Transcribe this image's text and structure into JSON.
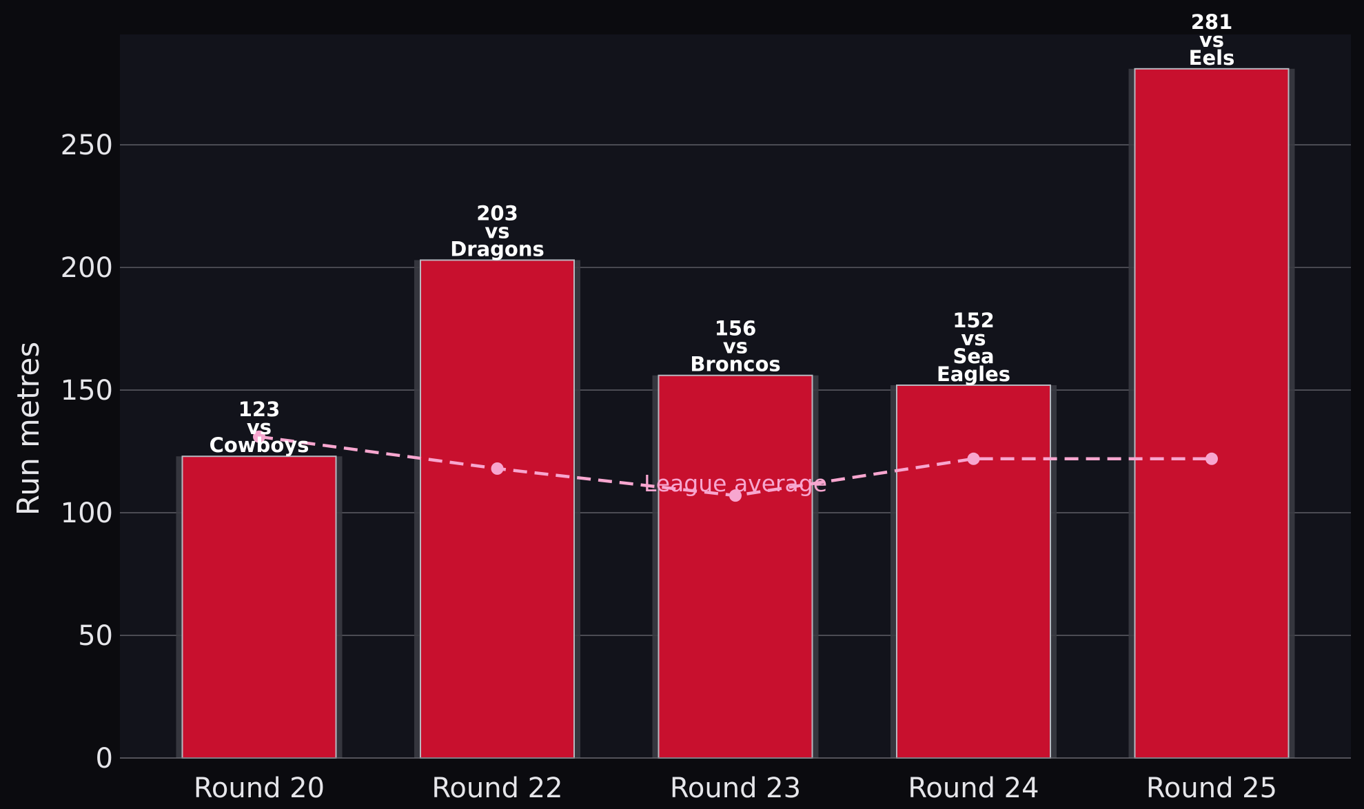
{
  "chart_data": {
    "type": "bar",
    "categories": [
      "Round 20",
      "Round 22",
      "Round 23",
      "Round 24",
      "Round 25"
    ],
    "values": [
      123,
      203,
      156,
      152,
      281
    ],
    "bar_labels": [
      [
        "123",
        "vs",
        "Cowboys"
      ],
      [
        "203",
        "vs",
        "Dragons"
      ],
      [
        "156",
        "vs",
        "Broncos"
      ],
      [
        "152",
        "vs",
        "Sea",
        "Eagles"
      ],
      [
        "281",
        "vs",
        "Eels"
      ]
    ],
    "line_series": {
      "name": "",
      "values": [
        131,
        118,
        107,
        122,
        122
      ],
      "annotation": "League average"
    },
    "ylabel": "Run metres",
    "xlabel": "",
    "title": "",
    "ylim": [
      0,
      295
    ],
    "yticks": [
      0,
      50,
      100,
      150,
      200,
      250
    ],
    "grid": "horizontal",
    "colors": {
      "background": "#0b0b0f",
      "plot_background": "#12131b",
      "bar": "#c8102e",
      "bar_edge": "#b8b8c0",
      "line": "#f7a6cf",
      "grid": "#5a5a62",
      "text": "#e6e6ea"
    }
  }
}
